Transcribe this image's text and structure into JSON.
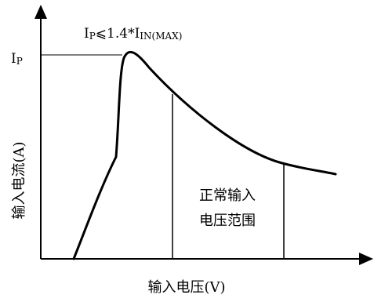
{
  "diagram": {
    "peak_formula": {
      "base": "I",
      "sub1": "P",
      "op": "⩽1.4*I",
      "sub2": "IN(MAX)"
    },
    "peak_label": {
      "base": "I",
      "sub": "P"
    },
    "y_axis_label": "输入电流(A)",
    "x_axis_label": "输入电压(V)",
    "range_label": {
      "line1": "正常输入",
      "line2": "电压范围"
    }
  }
}
